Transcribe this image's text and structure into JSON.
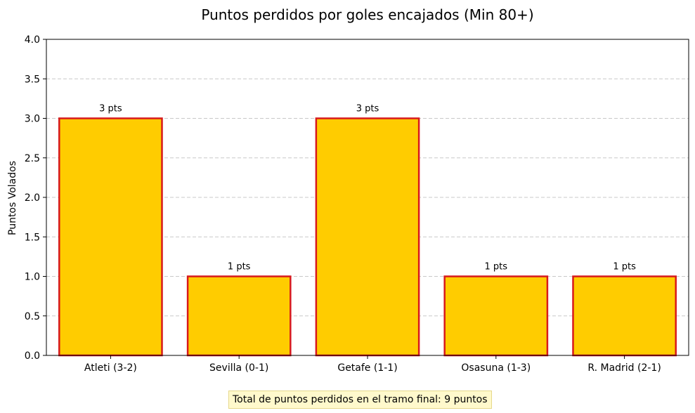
{
  "chart_data": {
    "type": "bar",
    "title": "Puntos perdidos por goles encajados (Min 80+)",
    "xlabel": "",
    "ylabel": "Puntos Volados",
    "categories": [
      "Atleti (3-2)",
      "Sevilla (0-1)",
      "Getafe (1-1)",
      "Osasuna (1-3)",
      "R. Madrid (2-1)"
    ],
    "values": [
      3,
      1,
      3,
      1,
      1
    ],
    "data_labels": [
      "3 pts",
      "1 pts",
      "3 pts",
      "1 pts",
      "1 pts"
    ],
    "ylim": [
      0,
      4.0
    ],
    "yticks": [
      "0.0",
      "0.5",
      "1.0",
      "1.5",
      "2.0",
      "2.5",
      "3.0",
      "3.5",
      "4.0"
    ],
    "grid": "horizontal dashed",
    "bar_fill": "#ffcc00",
    "bar_edge": "#d7191c"
  },
  "footnote": "Total de puntos perdidos en el tramo final: 9 puntos"
}
